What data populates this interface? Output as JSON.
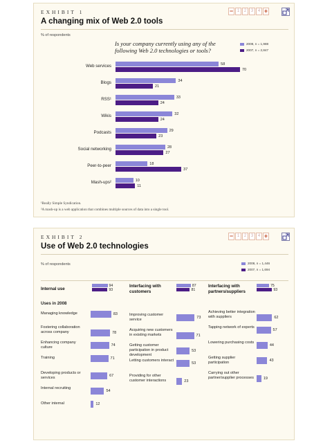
{
  "exhibit1": {
    "label": "EXHIBIT 1",
    "title": "A changing mix of Web 2.0 tools",
    "respondents": "% of respondents",
    "question": "Is your company currently using any of the following Web 2.0 technologies or tools?",
    "legend": [
      "2008, n = 1,988",
      "2007, n = 2,847"
    ],
    "footnotes": [
      "¹Really Simple Syndication.",
      "²A mash-up is a web application that combines multiple sources of data into a single tool."
    ]
  },
  "exhibit2": {
    "label": "EXHIBIT 2",
    "title": "Use of Web 2.0 technologies",
    "respondents": "% of respondents",
    "legend": [
      "2008, n = 1,446",
      "2007, n = 1,694"
    ],
    "uses_heading": "Uses in 2008"
  },
  "controls": {
    "minus": "−",
    "plus": "+",
    "pages": [
      "1",
      "2",
      "3",
      "4"
    ]
  },
  "colors": {
    "y2008": "#8b86d8",
    "y2007": "#4c1d86",
    "accent": "#c04a24",
    "panel": "#fdfaf0"
  },
  "chart_data": [
    {
      "type": "bar",
      "orientation": "horizontal",
      "title": "A changing mix of Web 2.0 tools",
      "categories": [
        "Web services",
        "Blogs",
        "RSS¹",
        "Wikis",
        "Podcasts",
        "Social networking",
        "Peer-to-peer",
        "Mash-ups²"
      ],
      "series": [
        {
          "name": "2008, n = 1,988",
          "values": [
            58,
            34,
            33,
            32,
            29,
            28,
            18,
            10
          ]
        },
        {
          "name": "2007, n = 2,847",
          "values": [
            70,
            21,
            24,
            24,
            23,
            27,
            37,
            11
          ]
        }
      ],
      "xlim": [
        0,
        70
      ],
      "legend": "top-right"
    },
    {
      "type": "bar",
      "orientation": "horizontal",
      "title": "Use of Web 2.0 technologies",
      "groups": [
        {
          "name": "Internal use",
          "summary": [
            {
              "name": "2008, n = 1,446",
              "value": 94
            },
            {
              "name": "2007, n = 1,694",
              "value": 93
            }
          ],
          "items": [
            {
              "label": "Managing knowledge",
              "value": 83
            },
            {
              "label": "Fostering collaboration across company",
              "value": 78
            },
            {
              "label": "Enhancing company culture",
              "value": 74
            },
            {
              "label": "Training",
              "value": 71
            },
            {
              "label": "Developing products or services",
              "value": 67
            },
            {
              "label": "Internal recruiting",
              "value": 54
            },
            {
              "label": "Other internal",
              "value": 12
            }
          ]
        },
        {
          "name": "Interfacing with customers",
          "summary": [
            {
              "name": "2008, n = 1,446",
              "value": 87
            },
            {
              "name": "2007, n = 1,694",
              "value": 81
            }
          ],
          "items": [
            {
              "label": "Improving customer service",
              "value": 73
            },
            {
              "label": "Acquiring new customers in existing markets",
              "value": 71
            },
            {
              "label": "Getting customer participation in product development",
              "value": 53
            },
            {
              "label": "Letting customers interact",
              "value": 53
            },
            {
              "label": "Providing for other customer interactions",
              "value": 23
            }
          ]
        },
        {
          "name": "Interfacing with partners/suppliers",
          "summary": [
            {
              "name": "2008, n = 1,446",
              "value": 75
            },
            {
              "name": "2007, n = 1,694",
              "value": 93
            }
          ],
          "items": [
            {
              "label": "Achieving better integration with suppliers",
              "value": 62
            },
            {
              "label": "Tapping network of experts",
              "value": 57
            },
            {
              "label": "Lowering purchasing costs",
              "value": 44
            },
            {
              "label": "Getting supplier participation",
              "value": 43
            },
            {
              "label": "Carrying out other partner/supplier processes",
              "value": 19
            }
          ]
        }
      ],
      "legend": "top-right"
    }
  ]
}
